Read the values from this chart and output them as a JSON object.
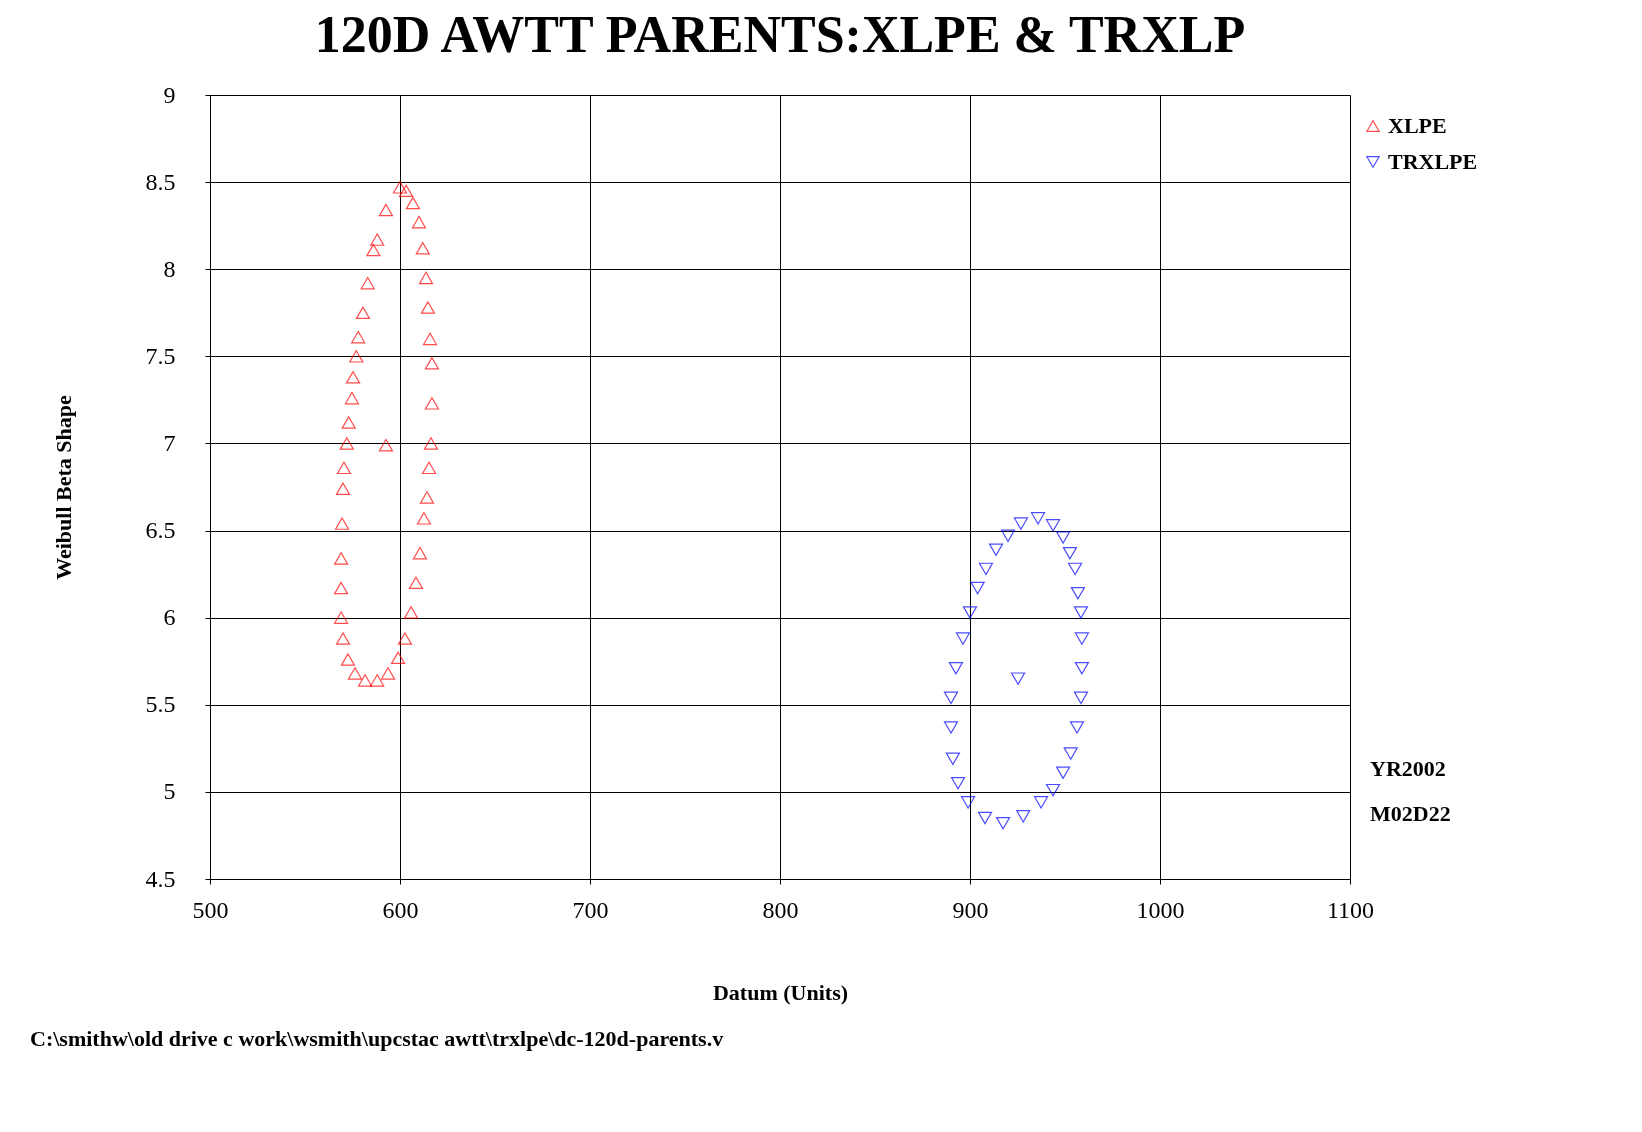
{
  "chart_data": {
    "type": "scatter",
    "title": "120D AWTT PARENTS:XLPE & TRXLP",
    "xlabel": "Datum (Units)",
    "ylabel": "Weibull Beta Shape",
    "xlim": [
      500,
      1100
    ],
    "xticks": [
      500,
      600,
      700,
      800,
      900,
      1000,
      1100
    ],
    "ylim": [
      4.5,
      9
    ],
    "yticks": [
      4.5,
      5,
      5.5,
      6,
      6.5,
      7,
      7.5,
      8,
      8.5,
      9
    ],
    "grid": true,
    "legend": "top right",
    "series": [
      {
        "name": "XLPE",
        "color": "#ff0000",
        "marker": "triangle",
        "x": [
          600,
          603.2,
          606.8,
          610,
          612,
          613.7,
          614.7,
          615.8,
          616.8,
          616.8,
          616.3,
          615.3,
          614.2,
          612.6,
          610.5,
          608.4,
          605.8,
          602.6,
          599,
          593.7,
          588,
          581.6,
          576.3,
          572.6,
          570,
          569,
          569,
          569,
          569.5,
          570,
          570.5,
          572,
          573,
          574.7,
          575.3,
          577,
          578,
          580.5,
          583,
          586,
          588,
          592.6,
          592.6
        ],
        "values": [
          8.47,
          8.45,
          8.38,
          8.27,
          8.12,
          7.95,
          7.78,
          7.6,
          7.46,
          7.23,
          7.0,
          6.86,
          6.69,
          6.57,
          6.37,
          6.2,
          6.03,
          5.88,
          5.77,
          5.68,
          5.64,
          5.64,
          5.68,
          5.76,
          5.88,
          6.0,
          6.17,
          6.34,
          6.54,
          6.74,
          6.86,
          7.0,
          7.12,
          7.26,
          7.38,
          7.5,
          7.61,
          7.75,
          7.92,
          8.11,
          8.17,
          8.34,
          6.99
        ]
      },
      {
        "name": "TRXLPE",
        "color": "#0000ff",
        "marker": "triangle-down",
        "x": [
          935.8,
          943.7,
          949,
          952.6,
          955.3,
          956.8,
          958.4,
          958.9,
          958.9,
          958.4,
          956.3,
          953,
          949,
          943.7,
          937.4,
          928,
          917.4,
          907.9,
          899,
          893.7,
          891,
          890,
          890,
          892.6,
          896.3,
          900,
          904,
          908.4,
          913.7,
          920,
          926.8,
          925.3
        ],
        "values": [
          6.57,
          6.53,
          6.46,
          6.37,
          6.28,
          6.14,
          6.03,
          5.88,
          5.71,
          5.54,
          5.37,
          5.22,
          5.11,
          5.01,
          4.94,
          4.86,
          4.82,
          4.85,
          4.94,
          5.05,
          5.19,
          5.37,
          5.54,
          5.71,
          5.88,
          6.03,
          6.17,
          6.28,
          6.39,
          6.47,
          6.54,
          5.65
        ]
      }
    ],
    "annotations": [
      "YR2002",
      "M02D22",
      "C:\\smithw\\old drive c work\\wsmith\\upcstac awtt\\trxlpe\\dc-120d-parents.v"
    ]
  }
}
